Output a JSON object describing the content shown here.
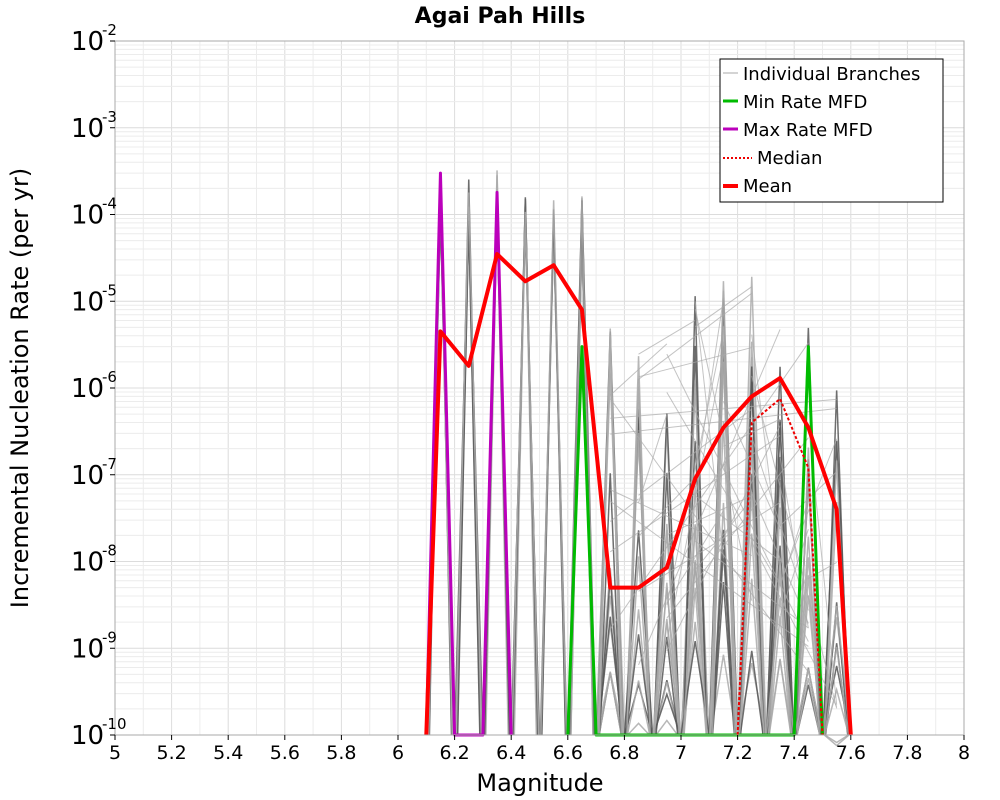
{
  "chart_data": {
    "type": "line",
    "title": "Agai Pah Hills",
    "xlabel": "Magnitude",
    "ylabel": "Incremental Nucleation Rate (per yr)",
    "xlim": [
      5,
      8
    ],
    "ylim": [
      1e-10,
      0.01
    ],
    "y_scale": "log",
    "grid": true,
    "legend_position": "top-right",
    "x_ticks": [
      "5",
      "5.2",
      "5.4",
      "5.6",
      "5.8",
      "6",
      "6.2",
      "6.4",
      "6.6",
      "6.8",
      "7",
      "7.2",
      "7.4",
      "7.6",
      "7.8",
      "8"
    ],
    "y_ticks": [
      {
        "base": "10",
        "exp": "-10"
      },
      {
        "base": "10",
        "exp": "-9"
      },
      {
        "base": "10",
        "exp": "-8"
      },
      {
        "base": "10",
        "exp": "-7"
      },
      {
        "base": "10",
        "exp": "-6"
      },
      {
        "base": "10",
        "exp": "-5"
      },
      {
        "base": "10",
        "exp": "-4"
      },
      {
        "base": "10",
        "exp": "-3"
      },
      {
        "base": "10",
        "exp": "-2"
      }
    ],
    "colors": {
      "branches": "#555555",
      "branches_light": "#aaaaaa",
      "min": "#00bb00",
      "max": "#bb00bb",
      "median": "#ee0000",
      "mean": "#ff0000"
    },
    "branch_peaks": [
      {
        "x": 6.15,
        "y": 0.0003
      },
      {
        "x": 6.25,
        "y": 0.0003
      },
      {
        "x": 6.35,
        "y": 0.00035
      },
      {
        "x": 6.45,
        "y": 0.00025
      },
      {
        "x": 6.55,
        "y": 0.00023
      },
      {
        "x": 6.65,
        "y": 0.00018
      },
      {
        "x": 6.75,
        "y": 5e-06
      },
      {
        "x": 6.85,
        "y": 4e-06
      },
      {
        "x": 6.95,
        "y": 4e-06
      },
      {
        "x": 7.05,
        "y": 2.5e-05
      },
      {
        "x": 7.15,
        "y": 2.5e-05
      },
      {
        "x": 7.25,
        "y": 2e-05
      },
      {
        "x": 7.35,
        "y": 1.5e-05
      },
      {
        "x": 7.45,
        "y": 5e-06
      },
      {
        "x": 7.55,
        "y": 1.5e-06
      }
    ],
    "series": [
      {
        "name": "Min Rate MFD",
        "x": [
          6.6,
          6.65,
          6.7,
          7.4,
          7.45,
          7.5
        ],
        "y": [
          1e-10,
          3e-06,
          1e-10,
          1e-10,
          3e-06,
          1e-10
        ]
      },
      {
        "name": "Max Rate MFD",
        "x": [
          6.1,
          6.15,
          6.2,
          6.3,
          6.35,
          6.4
        ],
        "y": [
          1e-10,
          0.0003,
          1e-10,
          1e-10,
          0.00018,
          1e-10
        ]
      },
      {
        "name": "Median",
        "x": [
          7.2,
          7.25,
          7.35,
          7.45,
          7.5
        ],
        "y": [
          1e-10,
          4e-07,
          7.5e-07,
          1.2e-07,
          1e-10
        ]
      },
      {
        "name": "Mean",
        "x": [
          6.1,
          6.15,
          6.25,
          6.35,
          6.45,
          6.55,
          6.65,
          6.75,
          6.85,
          6.95,
          7.05,
          7.15,
          7.25,
          7.35,
          7.45,
          7.55,
          7.6
        ],
        "y": [
          1e-10,
          4.5e-06,
          1.8e-06,
          3.5e-05,
          1.7e-05,
          2.6e-05,
          8e-06,
          5e-09,
          5e-09,
          8.5e-09,
          9e-08,
          3.5e-07,
          8e-07,
          1.3e-06,
          3.5e-07,
          4e-08,
          1e-10
        ]
      }
    ],
    "legend": [
      {
        "label": "Individual Branches"
      },
      {
        "label": "Min Rate MFD"
      },
      {
        "label": "Max Rate MFD"
      },
      {
        "label": "Median"
      },
      {
        "label": "Mean"
      }
    ]
  }
}
